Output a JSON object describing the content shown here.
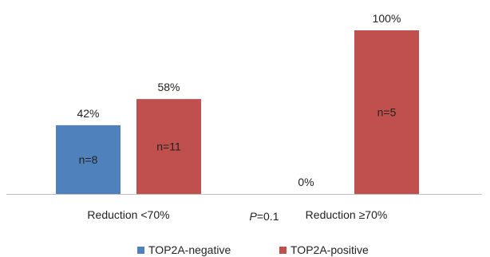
{
  "chart_data": {
    "type": "bar",
    "categories": [
      "Reduction <70%",
      "Reduction ≥70%"
    ],
    "series": [
      {
        "name": "TOP2A-negative",
        "color": "#4F81BD",
        "values": [
          42,
          0
        ],
        "value_labels": [
          "42%",
          "0%"
        ],
        "inner_labels": [
          "n=8",
          ""
        ]
      },
      {
        "name": "TOP2A-positive",
        "color": "#C0504D",
        "values": [
          58,
          100
        ],
        "value_labels": [
          "58%",
          "100%"
        ],
        "inner_labels": [
          "n=11",
          "n=5"
        ]
      }
    ],
    "ylim": [
      0,
      100
    ],
    "grid": false,
    "legend_position": "bottom",
    "annotation": {
      "prefix": "P",
      "suffix": "=0.1"
    },
    "axis_color": "#bfbfbf"
  }
}
